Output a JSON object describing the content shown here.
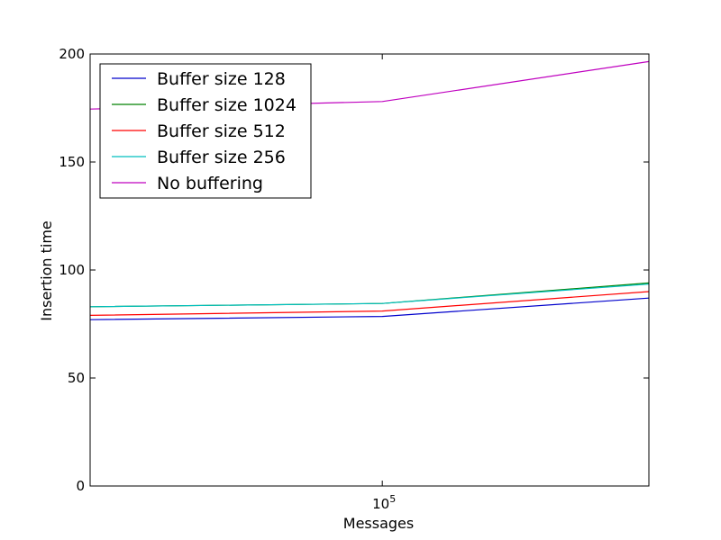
{
  "chart_data": {
    "type": "line",
    "title": "",
    "xlabel": "Messages",
    "ylabel": "Insertion time",
    "xscale": "log",
    "x": [
      30000,
      100000,
      300000
    ],
    "xlim": [
      30000,
      300000
    ],
    "ylim": [
      0,
      200
    ],
    "x_ticks": [
      {
        "value": 100000,
        "base": "10",
        "exp": "5"
      }
    ],
    "y_ticks": [
      {
        "value": 0,
        "label": "0"
      },
      {
        "value": 50,
        "label": "50"
      },
      {
        "value": 100,
        "label": "100"
      },
      {
        "value": 150,
        "label": "150"
      },
      {
        "value": 200,
        "label": "200"
      }
    ],
    "grid": false,
    "legend_position": "top-left",
    "series": [
      {
        "name": "Buffer size 128",
        "color": "#0000cc",
        "values": [
          77,
          78.5,
          87
        ]
      },
      {
        "name": "Buffer size 1024",
        "color": "#008000",
        "values": [
          83,
          84.5,
          94
        ]
      },
      {
        "name": "Buffer size 512",
        "color": "#ff0000",
        "values": [
          79,
          81,
          90
        ]
      },
      {
        "name": "Buffer size 256",
        "color": "#00bfbf",
        "values": [
          83,
          84.5,
          93.5
        ]
      },
      {
        "name": "No buffering",
        "color": "#bf00bf",
        "values": [
          174.5,
          178,
          196.5
        ]
      }
    ]
  }
}
